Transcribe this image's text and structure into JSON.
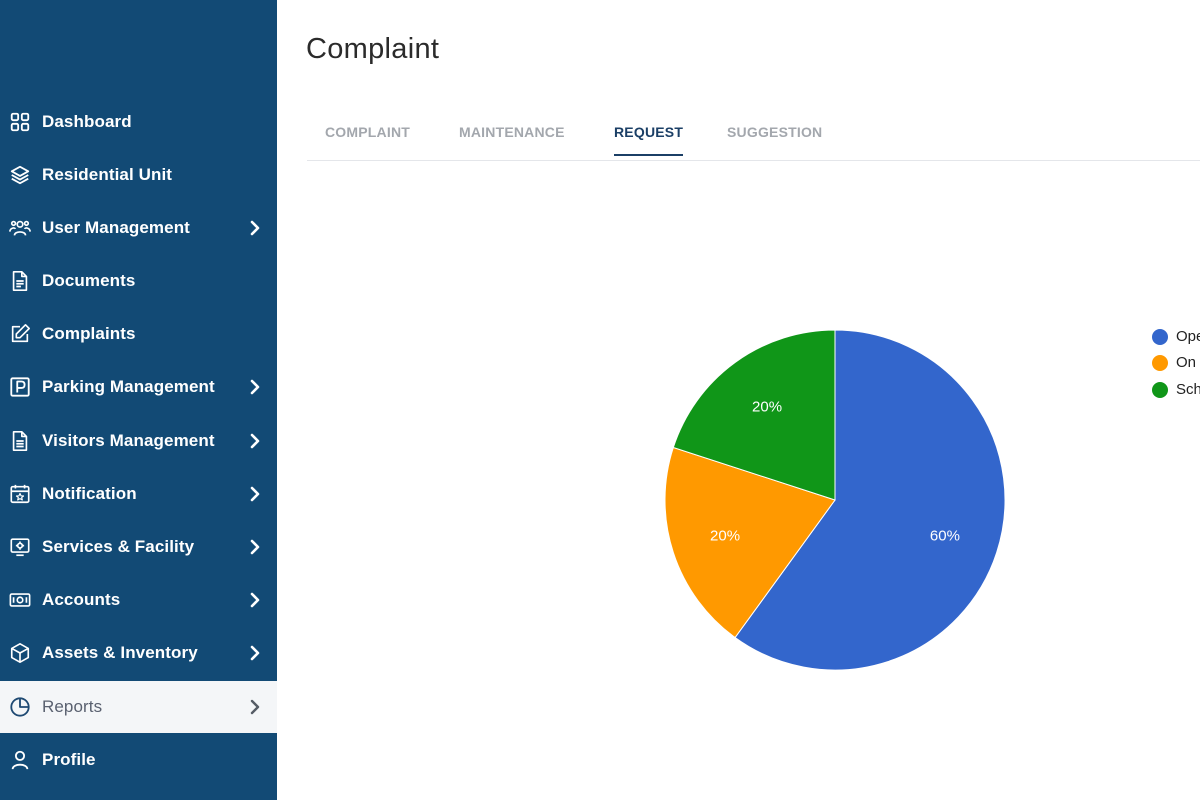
{
  "sidebar": {
    "items": [
      {
        "label": "Dashboard",
        "icon": "grid-icon",
        "chevron": false
      },
      {
        "label": "Residential Unit",
        "icon": "layers-icon",
        "chevron": false
      },
      {
        "label": "User Management",
        "icon": "users-icon",
        "chevron": true
      },
      {
        "label": "Documents",
        "icon": "document-icon",
        "chevron": false
      },
      {
        "label": "Complaints",
        "icon": "edit-icon",
        "chevron": false
      },
      {
        "label": "Parking Management",
        "icon": "parking-icon",
        "chevron": true
      },
      {
        "label": "Visitors Management",
        "icon": "file-list-icon",
        "chevron": true
      },
      {
        "label": "Notification",
        "icon": "calendar-star-icon",
        "chevron": true
      },
      {
        "label": "Services & Facility",
        "icon": "services-icon",
        "chevron": true
      },
      {
        "label": "Accounts",
        "icon": "money-icon",
        "chevron": true
      },
      {
        "label": "Assets & Inventory",
        "icon": "box-icon",
        "chevron": true
      },
      {
        "label": "Reports",
        "icon": "pie-chart-icon",
        "chevron": true,
        "active": true
      },
      {
        "label": "Profile",
        "icon": "user-icon",
        "chevron": false
      }
    ]
  },
  "header": {
    "title": "Complaint"
  },
  "tabs": [
    {
      "label": "COMPLAINT",
      "active": false
    },
    {
      "label": "MAINTENANCE",
      "active": false
    },
    {
      "label": "REQUEST",
      "active": true
    },
    {
      "label": "SUGGESTION",
      "active": false
    }
  ],
  "colors": {
    "sidebar_bg": "#124a75",
    "active_tab": "#1b3f66",
    "series_blue": "#3366cc",
    "series_orange": "#ff9900",
    "series_green": "#109618"
  },
  "chart_data": {
    "type": "pie",
    "title": "",
    "categories": [
      "Ope",
      "On",
      "Sch"
    ],
    "values": [
      60,
      20,
      20
    ],
    "data_labels": [
      "60%",
      "20%",
      "20%"
    ],
    "colors": [
      "#3366cc",
      "#ff9900",
      "#109618"
    ],
    "legend_position": "right"
  }
}
